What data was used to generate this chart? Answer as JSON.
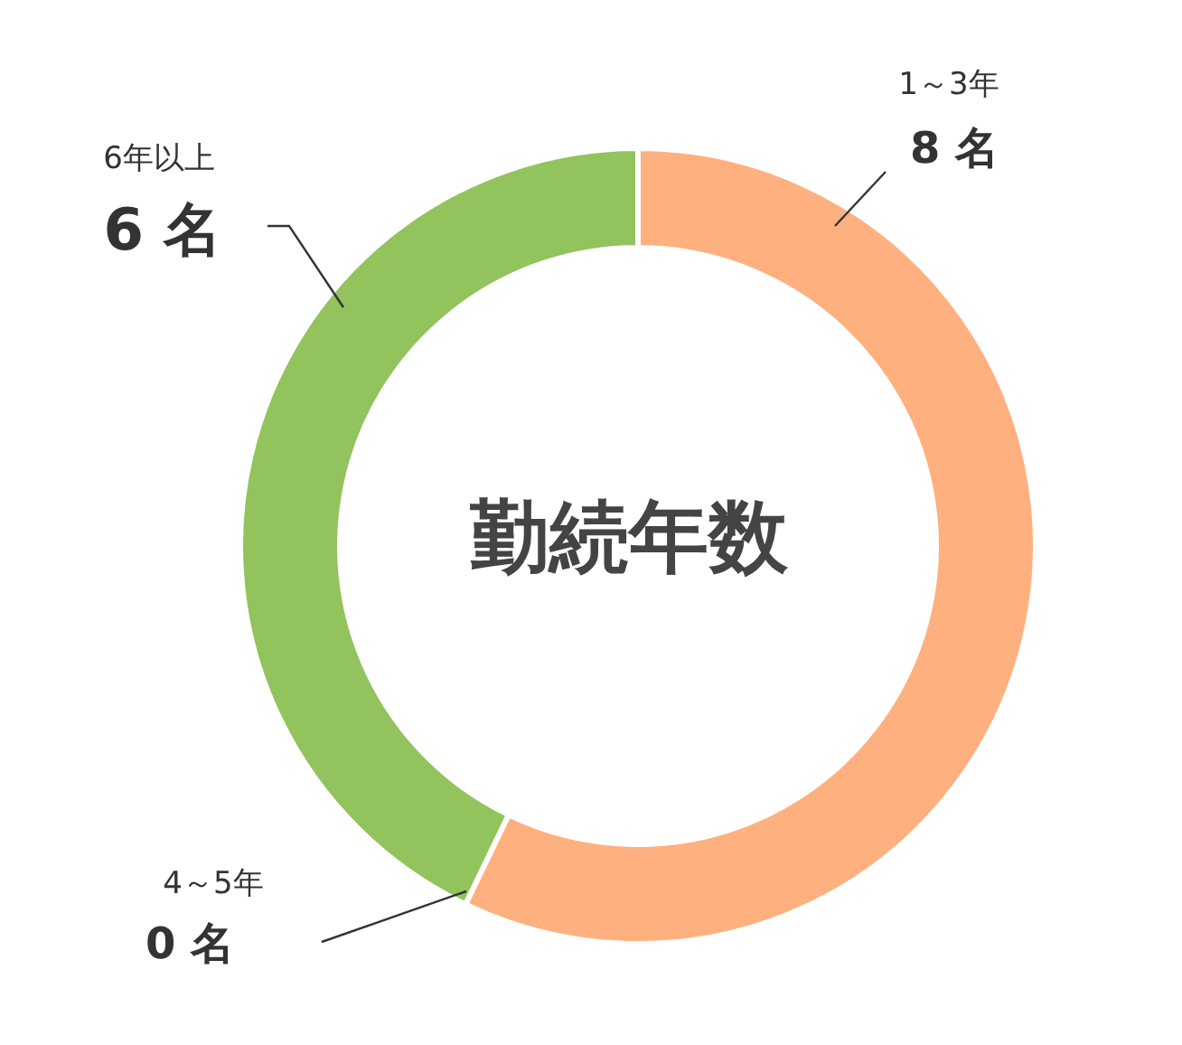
{
  "chart_data": {
    "type": "donut",
    "title": "勤続年数",
    "categories": [
      "1～3年",
      "4～5年",
      "6年以上"
    ],
    "values": [
      8,
      0,
      6
    ],
    "colors": [
      "#ffb07f",
      "#f4a06a",
      "#92c35d"
    ],
    "value_labels": [
      "8 名",
      "0 名",
      "6 名"
    ]
  }
}
